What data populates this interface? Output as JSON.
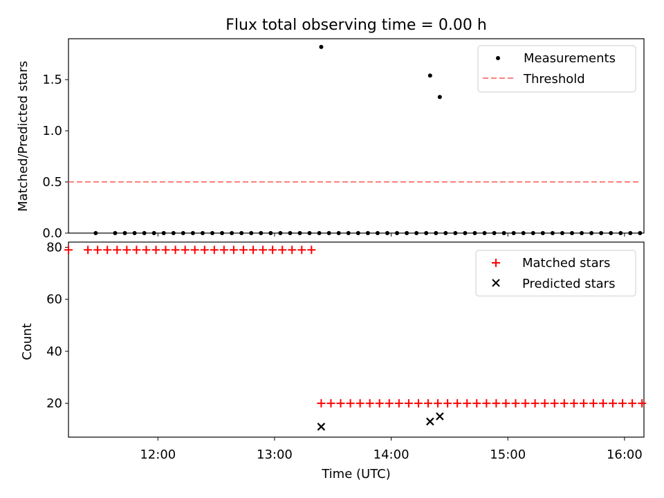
{
  "figure": {
    "title": "Flux total observing time = 0.00 h",
    "xlabel": "Time (UTC)",
    "x_ticks": [
      "12:00",
      "13:00",
      "14:00",
      "15:00",
      "16:00"
    ]
  },
  "chart_data": [
    {
      "type": "scatter",
      "ylabel": "Matched/Predicted stars",
      "xlim": [
        "11:14",
        "16:10"
      ],
      "ylim": [
        0,
        1.9
      ],
      "y_ticks": [
        "0.0",
        "0.5",
        "1.0",
        "1.5"
      ],
      "legend_position": "top-right",
      "series": [
        {
          "name": "Measurements",
          "marker": "dot",
          "color": "#000000",
          "x": [
            "11:28",
            "11:38",
            "11:43",
            "11:48",
            "11:53",
            "11:58",
            "12:03",
            "12:08",
            "12:13",
            "12:18",
            "12:23",
            "12:28",
            "12:33",
            "12:38",
            "12:43",
            "12:48",
            "12:53",
            "12:58",
            "13:03",
            "13:08",
            "13:13",
            "13:18",
            "13:23",
            "13:28",
            "13:33",
            "13:38",
            "13:43",
            "13:48",
            "13:53",
            "13:58",
            "14:03",
            "14:08",
            "14:13",
            "14:18",
            "14:23",
            "14:28",
            "14:33",
            "14:38",
            "14:43",
            "14:48",
            "14:53",
            "14:58",
            "15:03",
            "15:08",
            "15:13",
            "15:18",
            "15:23",
            "15:28",
            "15:33",
            "15:38",
            "15:43",
            "15:48",
            "15:53",
            "15:58",
            "16:03",
            "16:08",
            "13:24",
            "14:20",
            "14:25"
          ],
          "y": [
            0,
            0,
            0,
            0,
            0,
            0,
            0,
            0,
            0,
            0,
            0,
            0,
            0,
            0,
            0,
            0,
            0,
            0,
            0,
            0,
            0,
            0,
            0,
            0,
            0,
            0,
            0,
            0,
            0,
            0,
            0,
            0,
            0,
            0,
            0,
            0,
            0,
            0,
            0,
            0,
            0,
            0,
            0,
            0,
            0,
            0,
            0,
            0,
            0,
            0,
            0,
            0,
            0,
            0,
            0,
            0,
            1.82,
            1.54,
            1.33
          ]
        },
        {
          "name": "Threshold",
          "type": "line",
          "style": "dashed",
          "color": "#ff7f7f",
          "x": [
            "11:14",
            "16:08"
          ],
          "y": [
            0.5,
            0.5
          ]
        }
      ]
    },
    {
      "type": "scatter",
      "ylabel": "Count",
      "xlim": [
        "11:14",
        "16:10"
      ],
      "ylim": [
        7,
        82
      ],
      "y_ticks": [
        "20",
        "40",
        "60",
        "80"
      ],
      "legend_position": "top-right",
      "series": [
        {
          "name": "Matched stars",
          "marker": "plus",
          "color": "#ff0000",
          "x": [
            "11:14",
            "11:24",
            "11:29",
            "11:34",
            "11:39",
            "11:44",
            "11:49",
            "11:54",
            "11:59",
            "12:04",
            "12:09",
            "12:14",
            "12:19",
            "12:24",
            "12:29",
            "12:34",
            "12:39",
            "12:44",
            "12:49",
            "12:54",
            "12:59",
            "13:04",
            "13:09",
            "13:14",
            "13:19",
            "13:24",
            "13:29",
            "13:34",
            "13:39",
            "13:44",
            "13:49",
            "13:54",
            "13:59",
            "14:04",
            "14:09",
            "14:14",
            "14:19",
            "14:24",
            "14:29",
            "14:34",
            "14:39",
            "14:44",
            "14:49",
            "14:54",
            "14:59",
            "15:04",
            "15:09",
            "15:14",
            "15:19",
            "15:24",
            "15:29",
            "15:34",
            "15:39",
            "15:44",
            "15:49",
            "15:54",
            "15:59",
            "16:04",
            "16:09"
          ],
          "y": [
            79,
            79,
            79,
            79,
            79,
            79,
            79,
            79,
            79,
            79,
            79,
            79,
            79,
            79,
            79,
            79,
            79,
            79,
            79,
            79,
            79,
            79,
            79,
            79,
            79,
            20,
            20,
            20,
            20,
            20,
            20,
            20,
            20,
            20,
            20,
            20,
            20,
            20,
            20,
            20,
            20,
            20,
            20,
            20,
            20,
            20,
            20,
            20,
            20,
            20,
            20,
            20,
            20,
            20,
            20,
            20,
            20,
            20,
            20
          ]
        },
        {
          "name": "Predicted stars",
          "marker": "x",
          "color": "#000000",
          "x": [
            "13:24",
            "14:20",
            "14:25"
          ],
          "y": [
            11,
            13,
            15
          ]
        }
      ]
    }
  ]
}
